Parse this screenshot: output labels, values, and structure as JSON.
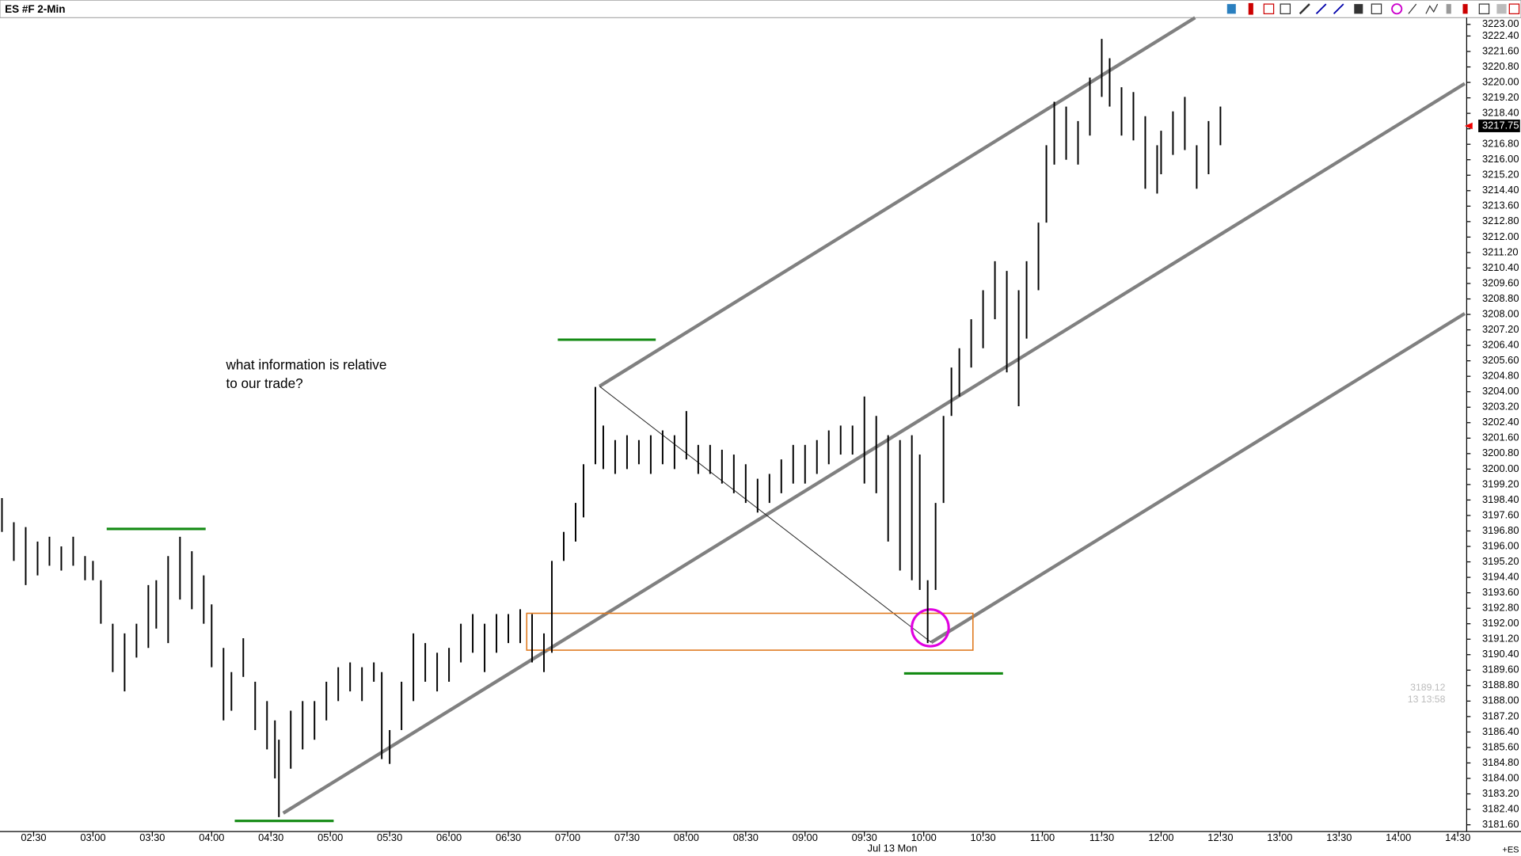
{
  "chart_data": {
    "type": "hilo",
    "title": "ES #F 2-Min",
    "annotation": [
      "what information is relative",
      "to our trade?"
    ],
    "date_label": "Jul 13 Mon",
    "symbol_tag": "+ES",
    "cursor_price": "3189.12",
    "cursor_time": "13 13:58",
    "last_price": 3217.75,
    "color": "#000000",
    "xlim": [
      "02:13",
      "14:34"
    ],
    "xticks": [
      "02:30",
      "03:00",
      "03:30",
      "04:00",
      "04:30",
      "05:00",
      "05:30",
      "06:00",
      "06:30",
      "07:00",
      "07:30",
      "08:00",
      "08:30",
      "09:00",
      "09:30",
      "10:00",
      "10:30",
      "11:00",
      "11:30",
      "12:00",
      "12:30",
      "13:00",
      "13:30",
      "14:00",
      "14:30"
    ],
    "ylim": [
      3181.25,
      3223.35
    ],
    "yticks": [
      {
        "value": 3223,
        "label": "3223.00"
      },
      {
        "value": 3222.4,
        "label": "3222.40"
      },
      {
        "value": 3221.6,
        "label": "3221.60"
      },
      {
        "value": 3220.8,
        "label": "3220.80"
      },
      {
        "value": 3220,
        "label": "3220.00"
      },
      {
        "value": 3219.2,
        "label": "3219.20"
      },
      {
        "value": 3218.4,
        "label": "3218.40"
      },
      {
        "value": 3217.6,
        "label": "3217.60"
      },
      {
        "value": 3216.8,
        "label": "3216.80"
      },
      {
        "value": 3216,
        "label": "3216.00"
      },
      {
        "value": 3215.2,
        "label": "3215.20"
      },
      {
        "value": 3214.4,
        "label": "3214.40"
      },
      {
        "value": 3213.6,
        "label": "3213.60"
      },
      {
        "value": 3212.8,
        "label": "3212.80"
      },
      {
        "value": 3212,
        "label": "3212.00"
      },
      {
        "value": 3211.2,
        "label": "3211.20"
      },
      {
        "value": 3210.4,
        "label": "3210.40"
      },
      {
        "value": 3209.6,
        "label": "3209.60"
      },
      {
        "value": 3208.8,
        "label": "3208.80"
      },
      {
        "value": 3208,
        "label": "3208.00"
      },
      {
        "value": 3207.2,
        "label": "3207.20"
      },
      {
        "value": 3206.4,
        "label": "3206.40"
      },
      {
        "value": 3205.6,
        "label": "3205.60"
      },
      {
        "value": 3204.8,
        "label": "3204.80"
      },
      {
        "value": 3204,
        "label": "3204.00"
      },
      {
        "value": 3203.2,
        "label": "3203.20"
      },
      {
        "value": 3202.4,
        "label": "3202.40"
      },
      {
        "value": 3201.6,
        "label": "3201.60"
      },
      {
        "value": 3200.8,
        "label": "3200.80"
      },
      {
        "value": 3200,
        "label": "3200.00"
      },
      {
        "value": 3199.2,
        "label": "3199.20"
      },
      {
        "value": 3198.4,
        "label": "3198.40"
      },
      {
        "value": 3197.6,
        "label": "3197.60"
      },
      {
        "value": 3196.8,
        "label": "3196.80"
      },
      {
        "value": 3196,
        "label": "3196.00"
      },
      {
        "value": 3195.2,
        "label": "3195.20"
      },
      {
        "value": 3194.4,
        "label": "3194.40"
      },
      {
        "value": 3193.6,
        "label": "3193.60"
      },
      {
        "value": 3192.8,
        "label": "3192.80"
      },
      {
        "value": 3192,
        "label": "3192.00"
      },
      {
        "value": 3191.2,
        "label": "3191.20"
      },
      {
        "value": 3190.4,
        "label": "3190.40"
      },
      {
        "value": 3189.6,
        "label": "3189.60"
      },
      {
        "value": 3188.8,
        "label": "3188.80"
      },
      {
        "value": 3188,
        "label": "3188.00"
      },
      {
        "value": 3187.2,
        "label": "3187.20"
      },
      {
        "value": 3186.4,
        "label": "3186.40"
      },
      {
        "value": 3185.6,
        "label": "3185.60"
      },
      {
        "value": 3184.8,
        "label": "3184.80"
      },
      {
        "value": 3184,
        "label": "3184.00"
      },
      {
        "value": 3183.2,
        "label": "3183.20"
      },
      {
        "value": 3182.4,
        "label": "3182.40"
      },
      {
        "value": 3181.6,
        "label": "3181.60"
      }
    ],
    "x": [
      "02:14",
      "02:20",
      "02:26",
      "02:32",
      "02:38",
      "02:44",
      "02:50",
      "02:56",
      "03:00",
      "03:04",
      "03:10",
      "03:16",
      "03:22",
      "03:28",
      "03:32",
      "03:38",
      "03:44",
      "03:50",
      "03:56",
      "04:00",
      "04:06",
      "04:10",
      "04:16",
      "04:22",
      "04:28",
      "04:32",
      "04:34",
      "04:40",
      "04:46",
      "04:52",
      "04:58",
      "05:04",
      "05:10",
      "05:16",
      "05:22",
      "05:26",
      "05:30",
      "05:36",
      "05:42",
      "05:48",
      "05:54",
      "06:00",
      "06:06",
      "06:12",
      "06:18",
      "06:24",
      "06:30",
      "06:36",
      "06:42",
      "06:48",
      "06:52",
      "06:58",
      "07:04",
      "07:08",
      "07:14",
      "07:18",
      "07:24",
      "07:30",
      "07:36",
      "07:42",
      "07:48",
      "07:54",
      "08:00",
      "08:06",
      "08:12",
      "08:18",
      "08:24",
      "08:30",
      "08:36",
      "08:42",
      "08:48",
      "08:54",
      "09:00",
      "09:06",
      "09:12",
      "09:18",
      "09:24",
      "09:30",
      "09:36",
      "09:42",
      "09:48",
      "09:54",
      "09:58",
      "10:02",
      "10:06",
      "10:10",
      "10:14",
      "10:18",
      "10:24",
      "10:30",
      "10:36",
      "10:42",
      "10:48",
      "10:52",
      "10:58",
      "11:02",
      "11:06",
      "11:12",
      "11:18",
      "11:24",
      "11:30",
      "11:34",
      "11:40",
      "11:46",
      "11:52",
      "11:58",
      "12:00",
      "12:06",
      "12:12",
      "12:18",
      "12:24",
      "12:30"
    ],
    "high": [
      3198.5,
      3197.25,
      3197,
      3196.25,
      3196.5,
      3196,
      3196.5,
      3195.5,
      3195.25,
      3194.25,
      3192,
      3191.5,
      3192,
      3194,
      3194.25,
      3195.5,
      3196.5,
      3195.75,
      3194.5,
      3193,
      3190.75,
      3189.5,
      3191.25,
      3189,
      3188,
      3187,
      3186,
      3187.5,
      3188,
      3188,
      3189,
      3189.75,
      3190,
      3189.75,
      3190,
      3189.5,
      3186.5,
      3189,
      3191.5,
      3191,
      3190.5,
      3190.75,
      3192,
      3192.5,
      3192,
      3192.5,
      3192.5,
      3192.75,
      3192.5,
      3191.5,
      3195.25,
      3196.75,
      3198.25,
      3200.25,
      3204.25,
      3202.25,
      3201.5,
      3201.75,
      3201.5,
      3201.75,
      3202,
      3201.75,
      3203,
      3201.25,
      3201.25,
      3201,
      3200.75,
      3200.25,
      3199.5,
      3199.75,
      3200.5,
      3201.25,
      3201.25,
      3201.5,
      3202,
      3202.25,
      3202.25,
      3203.75,
      3202.75,
      3201.75,
      3201.5,
      3201.75,
      3200.75,
      3194.25,
      3198.25,
      3202.75,
      3205.25,
      3206.25,
      3207.75,
      3209.25,
      3210.75,
      3210.25,
      3209.25,
      3210.75,
      3212.75,
      3216.75,
      3219,
      3218.75,
      3218,
      3220.25,
      3222.25,
      3221.25,
      3219.75,
      3219.5,
      3218.25,
      3216.75,
      3217.5,
      3218.5,
      3219.25,
      3216.75,
      3218,
      3218.75
    ],
    "low": [
      3196.75,
      3195.25,
      3194,
      3194.5,
      3195,
      3194.75,
      3195,
      3194.25,
      3194.25,
      3192,
      3189.5,
      3188.5,
      3190.25,
      3190.75,
      3191.75,
      3191,
      3193.25,
      3192.75,
      3192,
      3189.75,
      3187,
      3187.5,
      3189.25,
      3186.5,
      3185.5,
      3184,
      3182,
      3184.5,
      3185.5,
      3186,
      3187,
      3188,
      3188.5,
      3188,
      3189,
      3185,
      3184.75,
      3186.5,
      3188,
      3189,
      3188.5,
      3189,
      3190,
      3190.5,
      3189.5,
      3190.5,
      3191,
      3191,
      3190,
      3189.5,
      3190.5,
      3195.25,
      3196.25,
      3197.5,
      3200.25,
      3200,
      3199.75,
      3200,
      3200.25,
      3199.75,
      3200.25,
      3200,
      3200.5,
      3199.75,
      3199.75,
      3199.25,
      3198.75,
      3198.25,
      3197.75,
      3198.25,
      3198.75,
      3199.25,
      3199.25,
      3199.75,
      3200.25,
      3200.75,
      3200.75,
      3199.25,
      3198.75,
      3196.25,
      3194.75,
      3194.25,
      3193.75,
      3191,
      3193.75,
      3198.25,
      3202.75,
      3203.75,
      3205.25,
      3206.25,
      3207.75,
      3205,
      3203.25,
      3206.75,
      3209.25,
      3212.75,
      3215.75,
      3216,
      3215.75,
      3217.25,
      3219.25,
      3218.75,
      3217.25,
      3217,
      3214.5,
      3214.25,
      3215.25,
      3216.25,
      3216.5,
      3214.5,
      3215.25,
      3216.75
    ]
  }
}
